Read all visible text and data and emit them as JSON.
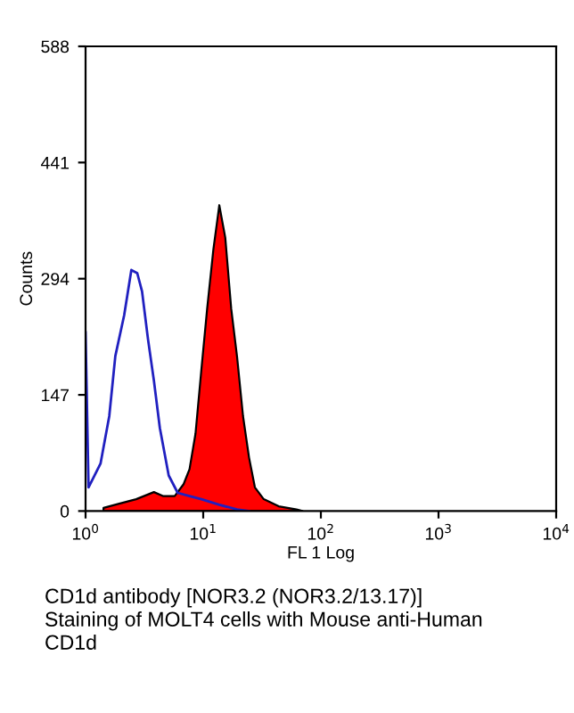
{
  "chart_data": {
    "type": "area",
    "log": "x",
    "xlabel": "FL 1 Log",
    "ylabel": "Counts",
    "xlim": [
      1,
      10000
    ],
    "xticks": [
      {
        "value": 1,
        "label": "10$^{0}$"
      },
      {
        "value": 10,
        "label": "10$^{1}$"
      },
      {
        "value": 100,
        "label": "10$^{2}$"
      },
      {
        "value": 1000,
        "label": "10$^{3}$"
      },
      {
        "value": 10000,
        "label": "10$^{4}$"
      }
    ],
    "ylim": [
      0,
      588
    ],
    "yticks": [
      0,
      147,
      294,
      441,
      588
    ],
    "grid": false,
    "legend": false,
    "series": [
      {
        "color": "#ff0000",
        "x": [
          1.42,
          1.9,
          2.69,
          3.81,
          4.54,
          5.72,
          6.81,
          7.65,
          8.6,
          9.66,
          10.8,
          12.2,
          13.7,
          15.4,
          17.3,
          19.4,
          21.8,
          24.5,
          27.5,
          32.7,
          43.8,
          62.1,
          69.7
        ],
        "values": [
          4,
          9,
          15,
          24,
          19,
          19,
          34,
          53,
          98,
          180,
          256,
          331,
          387,
          346,
          256,
          195,
          120,
          68,
          30,
          15,
          6,
          2,
          0
        ]
      },
      {
        "type": "line",
        "color": "#2020c0",
        "x": [
          1.0,
          1.06,
          1.34,
          1.59,
          1.79,
          2.13,
          2.45,
          2.75,
          3.02,
          3.39,
          3.81,
          4.28,
          5.09,
          6.07,
          7.65,
          9.66,
          13.7,
          19.4,
          24.5
        ],
        "values": [
          226,
          30,
          60,
          120,
          196,
          248,
          305,
          301,
          278,
          218,
          165,
          105,
          45,
          23,
          19,
          15,
          8,
          2,
          0
        ]
      }
    ],
    "annotations": [
      "CD1d antibody [NOR3.2 (NOR3.2/13.17)]",
      "Staining of MOLT4 cells with Mouse anti-Human",
      "CD1d"
    ]
  }
}
